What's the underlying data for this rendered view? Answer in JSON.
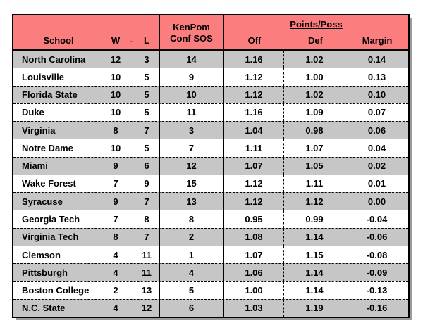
{
  "header": {
    "school": "School",
    "w": "W",
    "dash": "-",
    "l": "L",
    "kenpom_line1": "KenPom",
    "kenpom_line2": "Conf SOS",
    "points_poss": "Points/Poss",
    "off": "Off",
    "def": "Def",
    "margin": "Margin"
  },
  "colors": {
    "header_bg": "#FC7D7D",
    "alt_row_bg": "#C6C6C6",
    "row_bg": "#FFFFFF",
    "border": "#000000",
    "shadow": "#9B9B9B",
    "text": "#000000"
  },
  "rows": [
    {
      "school": "North Carolina",
      "w": "12",
      "l": "3",
      "sos": "14",
      "off": "1.16",
      "def": "1.02",
      "margin": "0.14"
    },
    {
      "school": "Louisville",
      "w": "10",
      "l": "5",
      "sos": "9",
      "off": "1.12",
      "def": "1.00",
      "margin": "0.13"
    },
    {
      "school": "Florida State",
      "w": "10",
      "l": "5",
      "sos": "10",
      "off": "1.12",
      "def": "1.02",
      "margin": "0.10"
    },
    {
      "school": "Duke",
      "w": "10",
      "l": "5",
      "sos": "11",
      "off": "1.16",
      "def": "1.09",
      "margin": "0.07"
    },
    {
      "school": "Virginia",
      "w": "8",
      "l": "7",
      "sos": "3",
      "off": "1.04",
      "def": "0.98",
      "margin": "0.06"
    },
    {
      "school": "Notre Dame",
      "w": "10",
      "l": "5",
      "sos": "7",
      "off": "1.11",
      "def": "1.07",
      "margin": "0.04"
    },
    {
      "school": "Miami",
      "w": "9",
      "l": "6",
      "sos": "12",
      "off": "1.07",
      "def": "1.05",
      "margin": "0.02"
    },
    {
      "school": "Wake Forest",
      "w": "7",
      "l": "9",
      "sos": "15",
      "off": "1.12",
      "def": "1.11",
      "margin": "0.01"
    },
    {
      "school": "Syracuse",
      "w": "9",
      "l": "7",
      "sos": "13",
      "off": "1.12",
      "def": "1.12",
      "margin": "0.00"
    },
    {
      "school": "Georgia Tech",
      "w": "7",
      "l": "8",
      "sos": "8",
      "off": "0.95",
      "def": "0.99",
      "margin": "-0.04"
    },
    {
      "school": "Virginia Tech",
      "w": "8",
      "l": "7",
      "sos": "2",
      "off": "1.08",
      "def": "1.14",
      "margin": "-0.06"
    },
    {
      "school": "Clemson",
      "w": "4",
      "l": "11",
      "sos": "1",
      "off": "1.07",
      "def": "1.15",
      "margin": "-0.08"
    },
    {
      "school": "Pittsburgh",
      "w": "4",
      "l": "11",
      "sos": "4",
      "off": "1.06",
      "def": "1.14",
      "margin": "-0.09"
    },
    {
      "school": "Boston College",
      "w": "2",
      "l": "13",
      "sos": "5",
      "off": "1.00",
      "def": "1.14",
      "margin": "-0.13"
    },
    {
      "school": "N.C. State",
      "w": "4",
      "l": "12",
      "sos": "6",
      "off": "1.03",
      "def": "1.19",
      "margin": "-0.16"
    }
  ],
  "chart_data": {
    "type": "table",
    "title": "ACC Conference Standings with KenPom Conf SOS and Points/Poss",
    "columns": [
      "School",
      "W",
      "L",
      "KenPom Conf SOS",
      "Points/Poss Off",
      "Points/Poss Def",
      "Points/Poss Margin"
    ],
    "rows": [
      [
        "North Carolina",
        12,
        3,
        14,
        1.16,
        1.02,
        0.14
      ],
      [
        "Louisville",
        10,
        5,
        9,
        1.12,
        1.0,
        0.13
      ],
      [
        "Florida State",
        10,
        5,
        10,
        1.12,
        1.02,
        0.1
      ],
      [
        "Duke",
        10,
        5,
        11,
        1.16,
        1.09,
        0.07
      ],
      [
        "Virginia",
        8,
        7,
        3,
        1.04,
        0.98,
        0.06
      ],
      [
        "Notre Dame",
        10,
        5,
        7,
        1.11,
        1.07,
        0.04
      ],
      [
        "Miami",
        9,
        6,
        12,
        1.07,
        1.05,
        0.02
      ],
      [
        "Wake Forest",
        7,
        9,
        15,
        1.12,
        1.11,
        0.01
      ],
      [
        "Syracuse",
        9,
        7,
        13,
        1.12,
        1.12,
        0.0
      ],
      [
        "Georgia Tech",
        7,
        8,
        8,
        0.95,
        0.99,
        -0.04
      ],
      [
        "Virginia Tech",
        8,
        7,
        2,
        1.08,
        1.14,
        -0.06
      ],
      [
        "Clemson",
        4,
        11,
        1,
        1.07,
        1.15,
        -0.08
      ],
      [
        "Pittsburgh",
        4,
        11,
        4,
        1.06,
        1.14,
        -0.09
      ],
      [
        "Boston College",
        2,
        13,
        5,
        1.0,
        1.14,
        -0.13
      ],
      [
        "N.C. State",
        4,
        12,
        6,
        1.03,
        1.19,
        -0.16
      ]
    ],
    "layout": {
      "header_bg": "#FC7D7D",
      "alternating_row_shading": true,
      "points_poss_header_underlined": true
    }
  }
}
